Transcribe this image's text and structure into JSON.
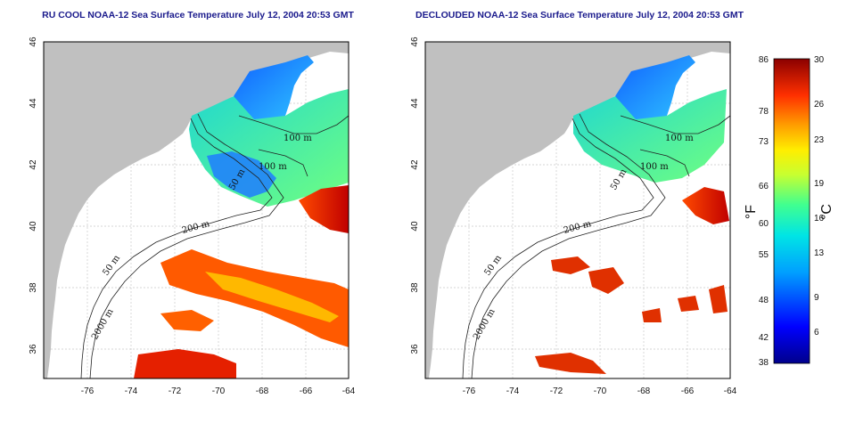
{
  "panels": [
    {
      "title": "RU COOL NOAA-12 Sea Surface Temperature July 12, 2004 20:53 GMT",
      "variant": "full",
      "contour_labels": [
        "100 m",
        "100 m",
        "50 m",
        "200 m",
        "50 m",
        "2000 m"
      ]
    },
    {
      "title": "DECLOUDED NOAA-12 Sea Surface Temperature July 12, 2004 20:53 GMT",
      "variant": "declouded",
      "contour_labels": [
        "100 m",
        "100 m",
        "50 m",
        "200 m",
        "50 m",
        "2000 m"
      ]
    }
  ],
  "axes": {
    "lon_ticks": [
      "-76",
      "-74",
      "-72",
      "-70",
      "-68",
      "-66",
      "-64"
    ],
    "lat_ticks": [
      "46",
      "44",
      "42",
      "40",
      "38",
      "36"
    ]
  },
  "colorbar": {
    "fahrenheit_label": "°F",
    "celsius_label": "°C",
    "fahrenheit_ticks": [
      "86",
      "78",
      "73",
      "66",
      "60",
      "55",
      "48",
      "42",
      "38"
    ],
    "celsius_ticks": [
      "30",
      "26",
      "23",
      "19",
      "16",
      "13",
      "9",
      "6"
    ],
    "range_c": [
      3,
      30
    ]
  },
  "colors": {
    "land": "#c0c0c0",
    "water": "#ffffff",
    "title": "#1a1a8c"
  }
}
